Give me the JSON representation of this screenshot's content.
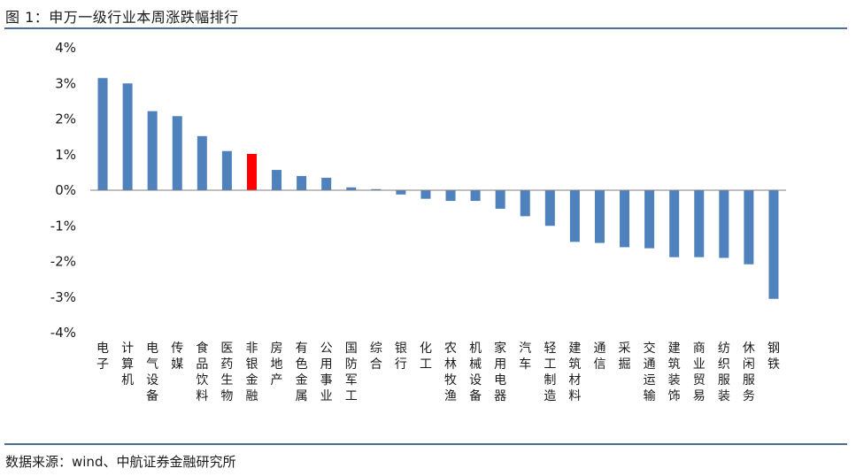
{
  "header": {
    "title": "图 1：申万一级行业本周涨跌幅排行"
  },
  "footer": {
    "source": "数据来源：wind、中航证券金融研究所"
  },
  "colors": {
    "bar": "#4f81bd",
    "highlight": "#ff0000",
    "axis": "#7f7f7f",
    "rule": "#4a6e96"
  },
  "chart_data": {
    "type": "bar",
    "title": "申万一级行业本周涨跌幅排行",
    "xlabel": "",
    "ylabel": "",
    "ylim": [
      -4,
      4
    ],
    "yticks": [
      "4%",
      "3%",
      "2%",
      "1%",
      "0%",
      "-1%",
      "-2%",
      "-3%",
      "-4%"
    ],
    "grid": false,
    "legend": "none",
    "highlight_category": "非银金融",
    "categories": [
      "电子",
      "计算机",
      "电气设备",
      "传媒",
      "食品饮料",
      "医药生物",
      "非银金融",
      "房地产",
      "有色金属",
      "公用事业",
      "国防军工",
      "综合",
      "银行",
      "化工",
      "农林牧渔",
      "机械设备",
      "家用电器",
      "汽车",
      "轻工制造",
      "建筑材料",
      "通信",
      "采掘",
      "交通运输",
      "建筑装饰",
      "商业贸易",
      "纺织服装",
      "休闲服务",
      "钢铁"
    ],
    "values": [
      3.15,
      3.0,
      2.22,
      2.08,
      1.52,
      1.1,
      1.02,
      0.57,
      0.4,
      0.35,
      0.08,
      0.03,
      -0.12,
      -0.24,
      -0.3,
      -0.3,
      -0.52,
      -0.73,
      -1.0,
      -1.45,
      -1.48,
      -1.6,
      -1.63,
      -1.88,
      -1.88,
      -1.9,
      -2.08,
      -3.05
    ]
  }
}
